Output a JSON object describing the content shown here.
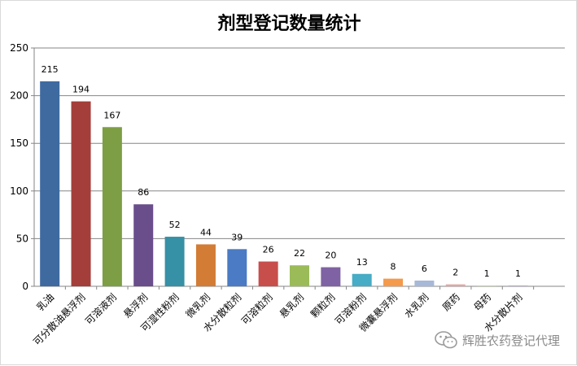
{
  "chart_data": {
    "type": "bar",
    "title": "剂型登记数量统计",
    "categories": [
      "乳油",
      "可分散油悬浮剂",
      "可溶液剂",
      "悬浮剂",
      "可湿性粉剂",
      "微乳剂",
      "水分散粒剂",
      "可溶粒剂",
      "悬乳剂",
      "颗粒剂",
      "可溶粉剂",
      "微囊悬浮剂",
      "水乳剂",
      "原药",
      "母药",
      "水分散片剂"
    ],
    "values": [
      215,
      194,
      167,
      86,
      52,
      44,
      39,
      26,
      22,
      20,
      13,
      8,
      6,
      2,
      1,
      1
    ],
    "bar_colors": [
      "#3e6aa0",
      "#a33e3a",
      "#7e9e45",
      "#6a4d8b",
      "#3690a6",
      "#d27c35",
      "#4a7bc4",
      "#c84e4b",
      "#9bbb59",
      "#7f62a3",
      "#47acc5",
      "#f49a4a",
      "#a7b8d8",
      "#dea7a4",
      "#c9d8ad",
      "#bcb1cf"
    ],
    "yticks": [
      0,
      50,
      100,
      150,
      200,
      250
    ],
    "ylim": [
      0,
      250
    ],
    "grid": true,
    "legend": "none"
  },
  "watermark": {
    "text": "辉胜农药登记代理",
    "icon": "wechat-icon"
  }
}
